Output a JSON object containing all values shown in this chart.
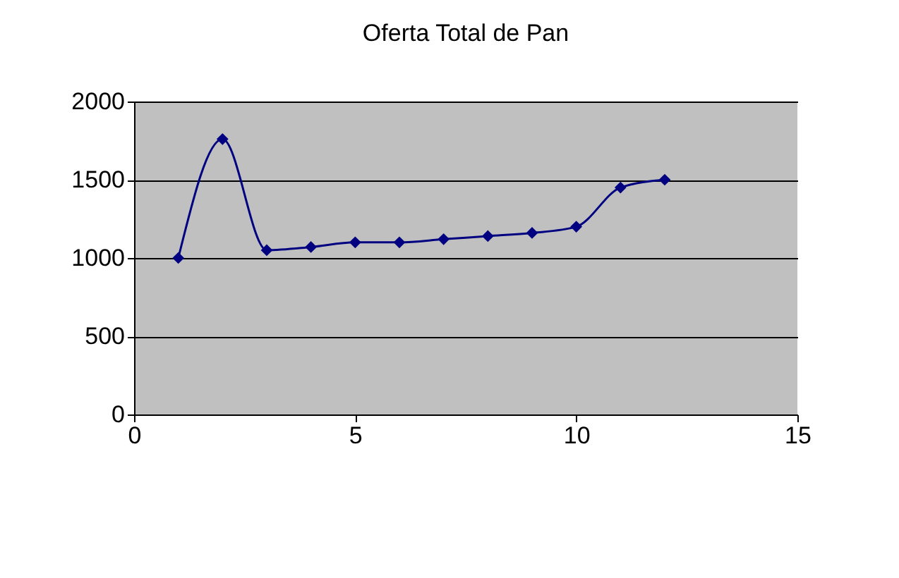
{
  "chart_data": {
    "type": "line",
    "title": "Oferta Total de Pan",
    "x": [
      1,
      2,
      3,
      4,
      5,
      6,
      7,
      8,
      9,
      10,
      11,
      12
    ],
    "series": [
      {
        "color": "#000080",
        "values": [
          1000,
          1760,
          1050,
          1070,
          1100,
          1100,
          1120,
          1140,
          1160,
          1200,
          1450,
          1500
        ]
      }
    ],
    "xlim": [
      0,
      15
    ],
    "xticks": [
      0,
      5,
      10,
      15
    ],
    "ylim": [
      0,
      2000
    ],
    "yticks": [
      0,
      500,
      1000,
      1500,
      2000
    ],
    "grid": "y",
    "marker": "diamond",
    "line_style": "solid"
  }
}
